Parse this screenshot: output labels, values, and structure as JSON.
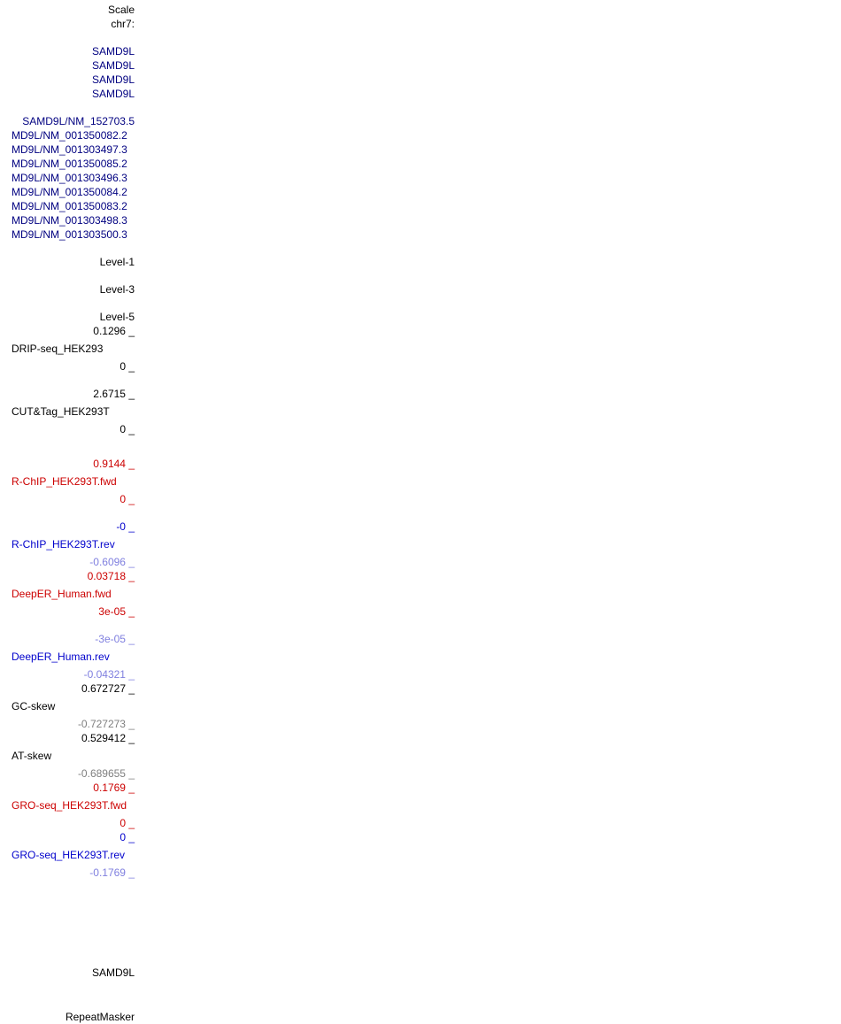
{
  "labels": {
    "scale": "Scale",
    "chrom": "chr7:",
    "gene1": "SAMD9L",
    "gene2": "SAMD9L",
    "gene3": "SAMD9L",
    "gene4": "SAMD9L",
    "tx1": "SAMD9L/NM_152703.5",
    "tx2": "MD9L/NM_001350082.2",
    "tx3": "MD9L/NM_001303497.3",
    "tx4": "MD9L/NM_001350085.2",
    "tx5": "MD9L/NM_001303496.3",
    "tx6": "MD9L/NM_001350084.2",
    "tx7": "MD9L/NM_001350083.2",
    "tx8": "MD9L/NM_001303498.3",
    "tx9": "MD9L/NM_001303500.3",
    "level1": "Level-1",
    "level3": "Level-3",
    "level5": "Level-5",
    "samd9l_bottom": "SAMD9L",
    "repeatmasker": "RepeatMasker"
  },
  "tracks": {
    "drip": {
      "name": "DRIP-seq_HEK293",
      "max": "0.1296 _",
      "min": "0 _"
    },
    "cuttag": {
      "name": "CUT&Tag_HEK293T",
      "max": "2.6715 _",
      "min": "0 _"
    },
    "rchip_fwd": {
      "name": "R-ChIP_HEK293T.fwd",
      "max": "0.9144 _",
      "min": "0 _"
    },
    "rchip_rev": {
      "name": "R-ChIP_HEK293T.rev",
      "max": "-0 _",
      "min": "-0.6096 _"
    },
    "deeper_fwd": {
      "name": "DeepER_Human.fwd",
      "max": "0.03718 _",
      "min": "3e-05 _"
    },
    "deeper_rev": {
      "name": "DeepER_Human.rev",
      "max": "-3e-05 _",
      "min": "-0.04321 _"
    },
    "gc_skew": {
      "name": "GC-skew",
      "max": "0.672727 _",
      "min": "-0.727273 _"
    },
    "at_skew": {
      "name": "AT-skew",
      "max": "0.529412 _",
      "min": "-0.689655 _"
    },
    "gro_fwd": {
      "name": "GRO-seq_HEK293T.fwd",
      "max": "0.1769 _",
      "min": "0 _"
    },
    "gro_rev": {
      "name": "GRO-seq_HEK293T.rev",
      "max": "0 _",
      "min": "-0.1769 _"
    }
  }
}
